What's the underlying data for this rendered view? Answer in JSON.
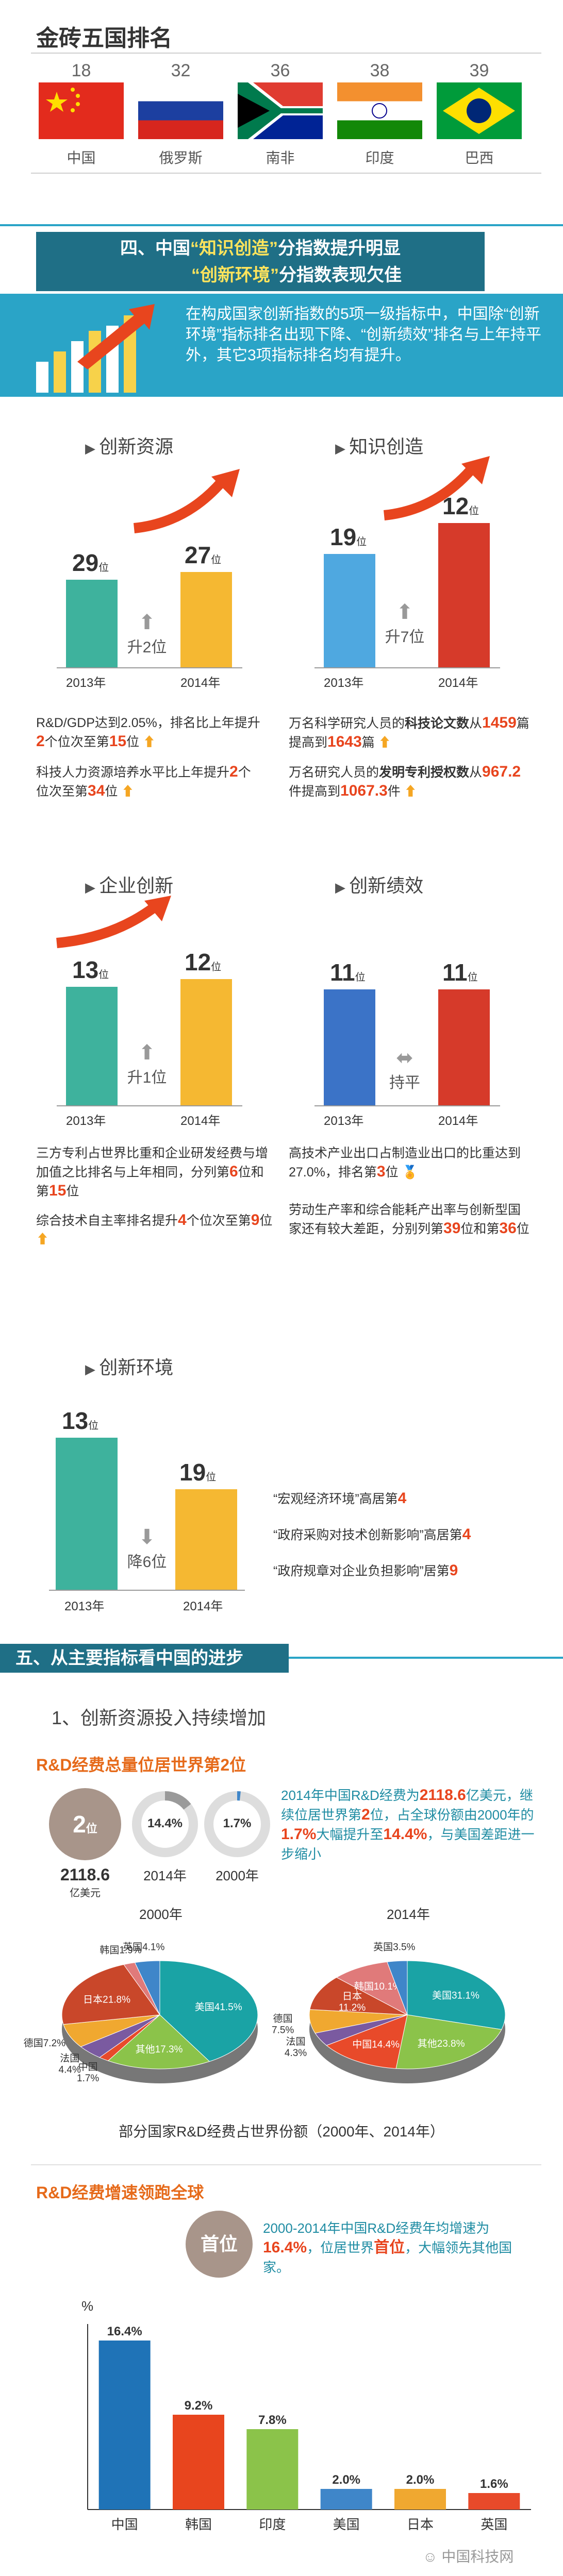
{
  "golden": {
    "title": "金砖五国排名",
    "countries": [
      {
        "rank": "18",
        "name": "中国",
        "flag": "china-flag-icon"
      },
      {
        "rank": "32",
        "name": "俄罗斯",
        "flag": "russia-flag-icon"
      },
      {
        "rank": "36",
        "name": "南非",
        "flag": "south-africa-flag-icon"
      },
      {
        "rank": "38",
        "name": "印度",
        "flag": "india-flag-icon"
      },
      {
        "rank": "39",
        "name": "巴西",
        "flag": "brazil-flag-icon"
      }
    ]
  },
  "section4": {
    "banner_line1_a": "四、中国",
    "banner_line1_b": "“知识创造”",
    "banner_line1_c": "分指数提升明显",
    "banner_line2_a": "“创新环境”",
    "banner_line2_b": "分指数表现欠佳",
    "intro": "在构成国家创新指数的5项一级指标中，中国除“创新环境”指标排名出现下降、“创新绩效”排名与上年持平外，其它3项指标排名均有提升。",
    "panels": {
      "resource": {
        "title": "创新资源",
        "r2013": "29",
        "r2014": "27",
        "unit": "位",
        "change": "升2位",
        "note1_a": "R&D/GDP达到2.05%，排名比上年提升",
        "note1_hl1": "2",
        "note1_b": "个位次至第",
        "note1_hl2": "15",
        "note1_c": "位",
        "note2_a": "科技人力资源培养水平比上年提升",
        "note2_hl1": "2",
        "note2_b": "个位次至第",
        "note2_hl2": "34",
        "note2_c": "位"
      },
      "knowledge": {
        "title": "知识创造",
        "r2013": "19",
        "r2014": "12",
        "unit": "位",
        "change": "升7位",
        "note1_a": "万名科学研究人员的",
        "note1_b": "科技论文数",
        "note1_c": "从",
        "note1_hl1": "1459",
        "note1_d": "篇提高到",
        "note1_hl2": "1643",
        "note1_e": "篇",
        "note2_a": "万名研究人员的",
        "note2_b": "发明专利授权数",
        "note2_c": "从",
        "note2_hl1": "967.2",
        "note2_d": "件提高到",
        "note2_hl2": "1067.3",
        "note2_e": "件"
      },
      "enterprise": {
        "title": "企业创新",
        "r2013": "13",
        "r2014": "12",
        "unit": "位",
        "change": "升1位",
        "note1_a": "三方专利占世界比重和企业研发经费与增加值之比排名与上年相同，分列第",
        "note1_hl1": "6",
        "note1_b": "位和第",
        "note1_hl2": "15",
        "note1_c": "位",
        "note2_a": "综合技术自主率排名提升",
        "note2_hl1": "4",
        "note2_b": "个位次至第",
        "note2_hl2": "9",
        "note2_c": "位"
      },
      "performance": {
        "title": "创新绩效",
        "r2013": "11",
        "r2014": "11",
        "unit": "位",
        "change": "持平",
        "note1_a": "高技术产业出口占制造业出口的比重达到27.0%，排名第",
        "note1_hl1": "3",
        "note1_b": "位",
        "note2_a": "劳动生产率和综合能耗产出率与创新型国家还有较大差距，分别列第",
        "note2_hl1": "39",
        "note2_b": "位和第",
        "note2_hl2": "36",
        "note2_c": "位"
      },
      "environment": {
        "title": "创新环境",
        "r2013": "13",
        "r2014": "19",
        "unit": "位",
        "change": "降6位",
        "n1_a": "“宏观经济环境”高居第",
        "n1_hl": "4",
        "n2_a": "“政府采购对技术创新影响”高居第",
        "n2_hl": "4",
        "n3_a": "“政府规章对企业负担影响”居第",
        "n3_hl": "9"
      }
    },
    "year2013": "2013年",
    "year2014": "2014年"
  },
  "section5": {
    "banner": "五、从主要指标看中国的进步",
    "sub1": "1、创新资源投入持续增加",
    "rd_title": "R&D经费总量位居世界第2位",
    "circle_rank": "2",
    "circle_rank_unit": "位",
    "circle_val": "2118.6",
    "circle_val_unit": "亿美元",
    "c2014_val": "14.4%",
    "c2014_lbl": "2014年",
    "c2000_val": "1.7%",
    "c2000_lbl": "2000年",
    "para_a": "2014年中国R&D经费为",
    "para_hl1": "2118.6",
    "para_b": "亿美元，继续位居世界第",
    "para_hl2": "2",
    "para_c": "位，占全球份额由2000年的",
    "para_hl3": "1.7%",
    "para_d": "大幅提升至",
    "para_hl4": "14.4%",
    "para_e": "，与美国差距进一步缩小",
    "pie2000_title": "2000年",
    "pie2014_title": "2014年",
    "pie_caption": "部分国家R&D经费占世界份额（2000年、2014年）",
    "growth_title": "R&D经费增速领跑全球",
    "growth_badge": "首位",
    "growth_a": "2000-2014年中国R&D经费年均增速为",
    "growth_hl1": "16.4%",
    "growth_b": "，位居世界",
    "growth_hl2": "首位",
    "growth_c": "，大幅领先其他国家。",
    "unit_pct": "%",
    "watermark": "中国科技网"
  },
  "chart_data": [
    {
      "type": "pie",
      "title": "2000年",
      "labels": [
        "美国",
        "其他",
        "中国",
        "法国",
        "德国",
        "日本",
        "韩国",
        "英国"
      ],
      "values": [
        41.5,
        17.3,
        1.7,
        4.4,
        7.2,
        21.8,
        1.9,
        4.1
      ],
      "label_text": [
        "美国41.5%",
        "其他17.3%",
        "中国\n1.7%",
        "法国\n4.4%",
        "德国7.2%",
        "日本21.8%",
        "韩国1.9%",
        "英国4.1%"
      ],
      "colors": [
        "#1aa3a5",
        "#8bc34a",
        "#e84a2a",
        "#7a5aa0",
        "#f0a830",
        "#c9472a",
        "#e07a7a",
        "#3f86c9"
      ]
    },
    {
      "type": "pie",
      "title": "2014年",
      "labels": [
        "美国",
        "其他",
        "中国",
        "法国",
        "德国",
        "日本",
        "韩国",
        "英国"
      ],
      "values": [
        31.1,
        23.8,
        14.4,
        4.3,
        7.5,
        11.2,
        10.1,
        3.5
      ],
      "label_text": [
        "美国31.1%",
        "其他23.8%",
        "中国14.4%",
        "法国\n4.3%",
        "德国\n7.5%",
        "日本\n11.2%",
        "韩国10.1%",
        "英国3.5%"
      ],
      "colors": [
        "#1aa3a5",
        "#8bc34a",
        "#e84a2a",
        "#7a5aa0",
        "#f0a830",
        "#c9472a",
        "#e07a7a",
        "#3f86c9"
      ]
    },
    {
      "type": "bar",
      "ylabel": "%",
      "categories": [
        "中国",
        "韩国",
        "印度",
        "美国",
        "日本",
        "英国"
      ],
      "values": [
        16.4,
        9.2,
        7.8,
        2.0,
        2.0,
        1.6
      ],
      "data_labels": [
        "16.4%",
        "9.2%",
        "7.8%",
        "2.0%",
        "2.0%",
        "1.6%"
      ],
      "colors": [
        "#1f73b7",
        "#e8451e",
        "#8bc34a",
        "#3f86c9",
        "#f0a830",
        "#e84a2a"
      ],
      "ylim": [
        0,
        18
      ]
    }
  ]
}
